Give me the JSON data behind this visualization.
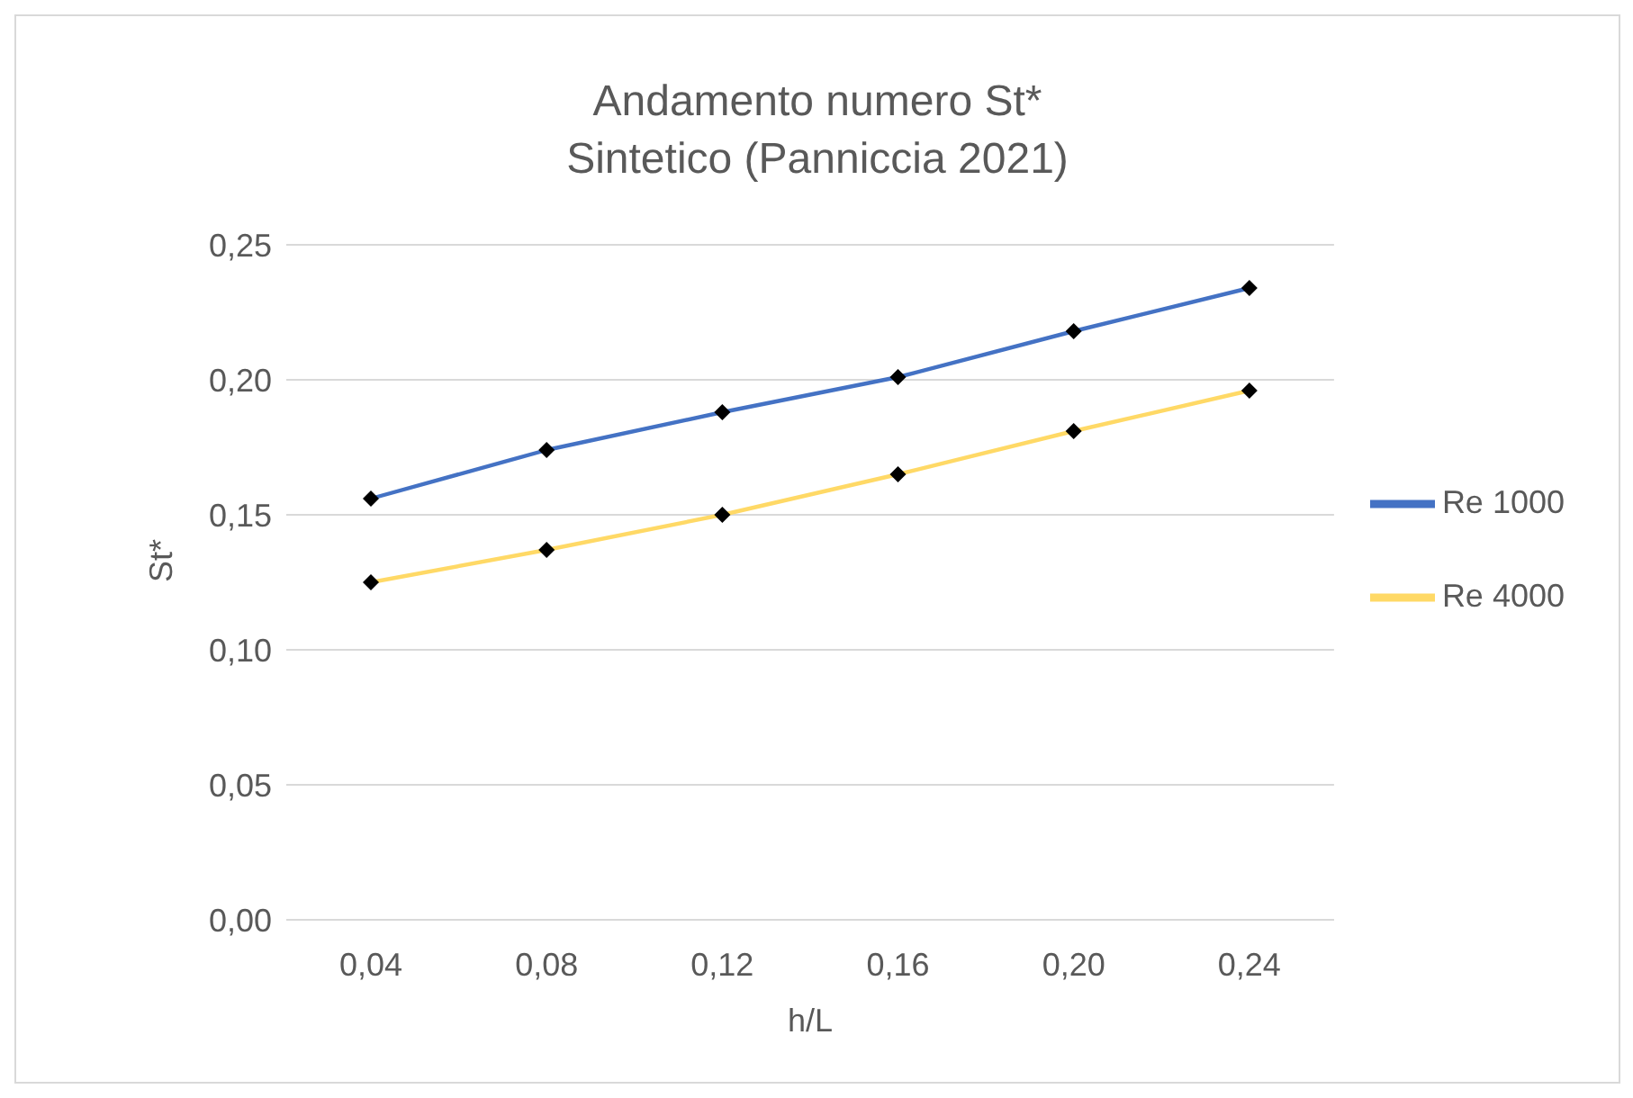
{
  "chart_data": {
    "type": "line",
    "title": "Andamento numero St*",
    "subtitle": "Sintetico (Panniccia 2021)",
    "xlabel": "h/L",
    "ylabel": "St*",
    "categories": [
      "0,04",
      "0,08",
      "0,12",
      "0,16",
      "0,20",
      "0,24"
    ],
    "series": [
      {
        "name": "Re 1000",
        "color": "#4472c4",
        "values": [
          0.156,
          0.174,
          0.188,
          0.201,
          0.218,
          0.234
        ]
      },
      {
        "name": "Re 4000",
        "color": "#ffd966",
        "values": [
          0.125,
          0.137,
          0.15,
          0.165,
          0.181,
          0.196
        ]
      }
    ],
    "ylim": [
      0,
      0.25
    ],
    "yticks": [
      {
        "value": 0,
        "label": "0,00"
      },
      {
        "value": 0.05,
        "label": "0,05"
      },
      {
        "value": 0.1,
        "label": "0,10"
      },
      {
        "value": 0.15,
        "label": "0,15"
      },
      {
        "value": 0.2,
        "label": "0,20"
      },
      {
        "value": 0.25,
        "label": "0,25"
      }
    ],
    "grid": "y",
    "legend": "right",
    "marker": "diamond",
    "line_style": "solid"
  }
}
